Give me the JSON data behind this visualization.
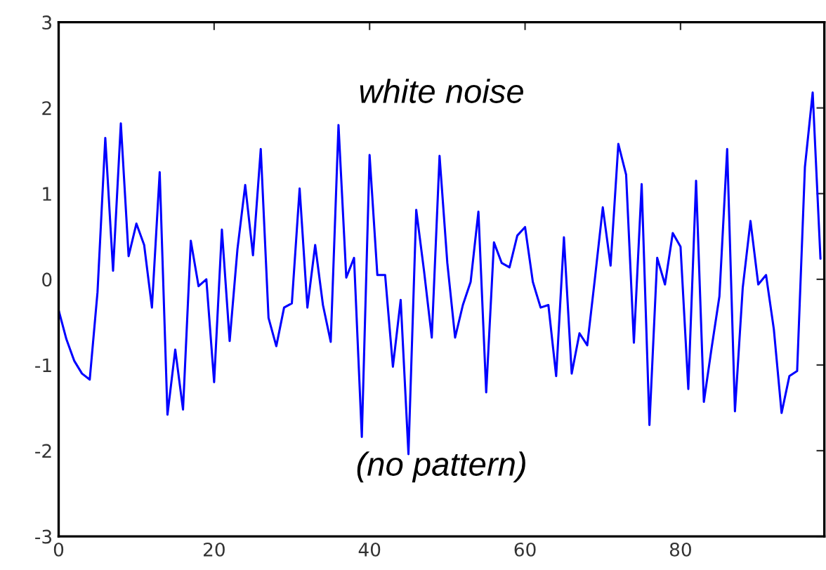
{
  "chart_data": {
    "type": "line",
    "annotations": [
      "white noise",
      "(no pattern)"
    ],
    "x": [
      0,
      1,
      2,
      3,
      4,
      5,
      6,
      7,
      8,
      9,
      10,
      11,
      12,
      13,
      14,
      15,
      16,
      17,
      18,
      19,
      20,
      21,
      22,
      23,
      24,
      25,
      26,
      27,
      28,
      29,
      30,
      31,
      32,
      33,
      34,
      35,
      36,
      37,
      38,
      39,
      40,
      41,
      42,
      43,
      44,
      45,
      46,
      47,
      48,
      49,
      50,
      51,
      52,
      53,
      54,
      55,
      56,
      57,
      58,
      59,
      60,
      61,
      62,
      63,
      64,
      65,
      66,
      67,
      68,
      69,
      70,
      71,
      72,
      73,
      74,
      75,
      76,
      77,
      78,
      79,
      80,
      81,
      82,
      83,
      84,
      85,
      86,
      87,
      88,
      89,
      90,
      91,
      92,
      93,
      94,
      95,
      96,
      97,
      98
    ],
    "series": [
      {
        "color": "#0000ff",
        "values": [
          -0.36,
          -0.7,
          -0.95,
          -1.1,
          -1.17,
          -0.15,
          1.65,
          0.1,
          1.82,
          0.27,
          0.65,
          0.4,
          -0.33,
          1.25,
          -1.58,
          -0.82,
          -1.52,
          0.45,
          -0.08,
          0.0,
          -1.2,
          0.58,
          -0.72,
          0.35,
          1.1,
          0.28,
          1.52,
          -0.45,
          -0.78,
          -0.33,
          -0.28,
          1.06,
          -0.33,
          0.4,
          -0.3,
          -0.73,
          1.8,
          0.02,
          0.25,
          -1.84,
          1.45,
          0.05,
          0.05,
          -1.02,
          -0.24,
          -2.04,
          0.81,
          0.1,
          -0.68,
          1.44,
          0.19,
          -0.68,
          -0.3,
          -0.03,
          0.79,
          -1.32,
          0.43,
          0.19,
          0.14,
          0.51,
          0.61,
          -0.03,
          -0.33,
          -0.3,
          -1.13,
          0.49,
          -1.1,
          -0.63,
          -0.77,
          0.02,
          0.84,
          0.16,
          1.58,
          1.22,
          -0.74,
          1.11,
          -1.7,
          0.25,
          -0.06,
          0.54,
          0.38,
          -1.28,
          1.15,
          -1.43,
          -0.8,
          -0.2,
          1.52,
          -1.54,
          -0.1,
          0.68,
          -0.06,
          0.05,
          -0.58,
          -1.56,
          -1.13,
          -1.07,
          1.31,
          2.18,
          0.24
        ]
      }
    ],
    "xlim": [
      0,
      98.5
    ],
    "ylim": [
      -3,
      3
    ],
    "xticks": [
      0,
      20,
      40,
      60,
      80
    ],
    "yticks": [
      -3,
      -2,
      -1,
      0,
      1,
      2,
      3
    ],
    "grid": false,
    "legend": false,
    "marker": "none",
    "line_style": "solid"
  }
}
